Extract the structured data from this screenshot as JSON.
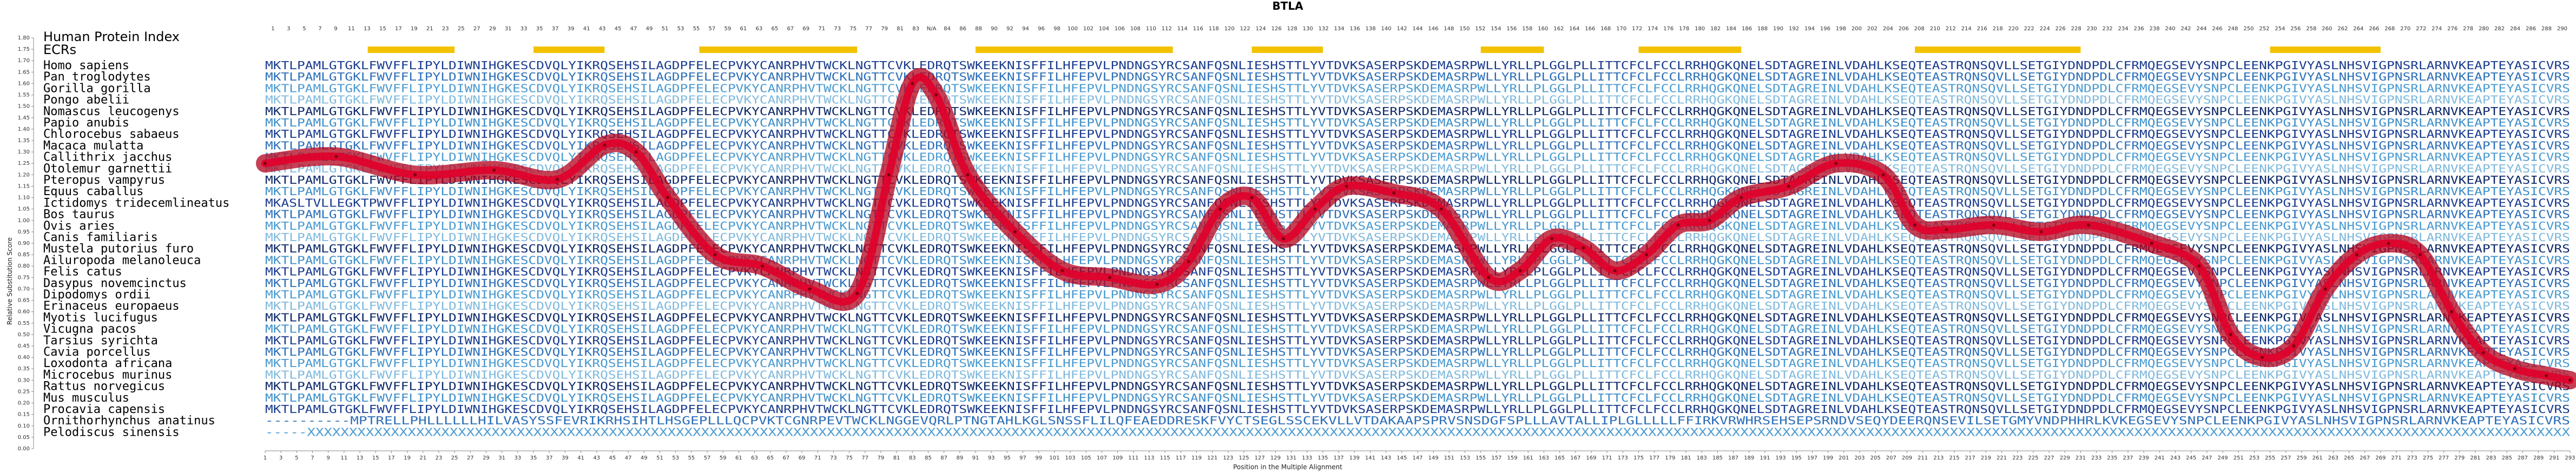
{
  "chart_data": {
    "type": "line",
    "title": "BTLA",
    "xlabel": "Position in the Multiple Alignment",
    "ylabel": "Relative Substitution Score",
    "ylim": [
      0.0,
      1.8
    ],
    "xlim": [
      1,
      293
    ],
    "yticks": [
      "0.00",
      "0.05",
      "0.10",
      "0.15",
      "0.20",
      "0.25",
      "0.30",
      "0.35",
      "0.40",
      "0.45",
      "0.50",
      "0.55",
      "0.60",
      "0.65",
      "0.70",
      "0.75",
      "0.80",
      "0.85",
      "0.90",
      "0.95",
      "1.00",
      "1.05",
      "1.10",
      "1.15",
      "1.20",
      "1.25",
      "1.30",
      "1.35",
      "1.40",
      "1.45",
      "1.50",
      "1.55",
      "1.60",
      "1.65",
      "1.70",
      "1.75",
      "1.80"
    ],
    "hpi_label": "Human Protein Index",
    "ecr_label": "ECRs",
    "ecr_regions": [
      [
        14,
        25
      ],
      [
        35,
        44
      ],
      [
        56,
        76
      ],
      [
        91,
        116
      ],
      [
        126,
        135
      ],
      [
        155,
        163
      ],
      [
        175,
        188
      ],
      [
        210,
        231
      ],
      [
        255,
        269
      ]
    ],
    "top_axis_labels": [
      "1",
      "3",
      "5",
      "7",
      "9",
      "11",
      "13",
      "15",
      "17",
      "19",
      "21",
      "23",
      "25",
      "27",
      "29",
      "31",
      "33",
      "35",
      "37",
      "39",
      "41",
      "43",
      "45",
      "47",
      "49",
      "51",
      "53",
      "55",
      "57",
      "59",
      "61",
      "63",
      "65",
      "67",
      "69",
      "71",
      "73",
      "75",
      "77",
      "79",
      "81",
      "83",
      "N/A",
      "84",
      "86",
      "88",
      "90",
      "92",
      "94",
      "96",
      "98",
      "100",
      "102",
      "104",
      "106",
      "108",
      "110",
      "112",
      "114",
      "116",
      "118",
      "120",
      "122",
      "124",
      "126",
      "128",
      "130",
      "132",
      "134",
      "136",
      "138",
      "140",
      "142",
      "144",
      "146",
      "148",
      "150",
      "152",
      "154",
      "156",
      "158",
      "160",
      "162",
      "164",
      "166",
      "168",
      "170",
      "172",
      "174",
      "176",
      "178",
      "180",
      "182",
      "184",
      "186",
      "188",
      "190",
      "192",
      "194",
      "196",
      "198",
      "200",
      "202",
      "204",
      "206",
      "208",
      "210",
      "212",
      "214",
      "216",
      "218",
      "220",
      "222",
      "224",
      "226",
      "228",
      "230",
      "232",
      "234",
      "236",
      "238",
      "240",
      "242",
      "244",
      "246",
      "248",
      "250",
      "252",
      "254",
      "256",
      "258",
      "260",
      "262",
      "264",
      "266",
      "268",
      "270",
      "272",
      "274",
      "276",
      "278",
      "280",
      "282",
      "284",
      "286",
      "288",
      "290"
    ],
    "species": [
      "Homo sapiens",
      "Pan troglodytes",
      "Gorilla gorilla",
      "Pongo abelii",
      "Nomascus leucogenys",
      "Papio anubis",
      "Chlorocebus sabaeus",
      "Macaca mulatta",
      "Callithrix jacchus",
      "Otolemur garnettii",
      "Pteropus vampyrus",
      "Equus caballus",
      "Ictidomys tridecemlineatus",
      "Bos taurus",
      "Ovis aries",
      "Canis familiaris",
      "Mustela putorius furo",
      "Ailuropoda melanoleuca",
      "Felis catus",
      "Dasypus novemcinctus",
      "Dipodomys ordii",
      "Erinaceus europaeus",
      "Myotis lucifugus",
      "Vicugna pacos",
      "Tarsius syrichta",
      "Cavia porcellus",
      "Loxodonta africana",
      "Microcebus murinus",
      "Rattus norvegicus",
      "Mus musculus",
      "Procavia capensis",
      "Ornithorhynchus anatinus",
      "Pelodiscus sinensis"
    ],
    "sequences": [
      "MKTLPAMLGTGKLFWVFFLIPYLDIWNIHGKESCDVQLYIKRQSEHSILAGDPFELECPVKYCANRPHVTWCKLNGTTCVKLEDRQTSWKEEKNISFFILHFEPVLPNDNGSYRCSANFQSNLIESHSTTLYVTDVKSASERPSKDEMASRPWLLYRLLPLGGLPLLITTCFCLFCCLRRHQGKQNELSDTAGREINLVDAHLKSEQTEASTRQNSQVLLSETGIYDNDPDLCFRMQEGSEVYSNPCLEENKPGIVYASLNHSVIGPNSRLARNVKEAPTEYASICVRS",
      "MKTLPAMLGTGKLFWVFFLIPYLDIWNIHGKESCDVQLYIKRQSEHSILAGDPFELECPVKYCANRPHVTWCKLNGTTCVKLEDRQTSWKEEKNISFFILHFEPVLPNDNGSYRCSANFQSNLIESHSTTLYVTDVKSASERPSKDEMASRPWLLYRLLPLGGLPLLITTCFCLFCCLRRHQGKQNELSDTAGREINLVDAHLKSEQTEASTRQNSQVLLSETGIYDNDPDLCFRMQEGSEVYSNPCLEENKPGIVYASLNHSVIGPNSRLARNVKEAPTEYASICVRS",
      "MKTLPAMLGTGKLFWVFFLIPYLDIWNIHGKESCDVQLYIKRQSEHSILAGDPFELECPVKYCANRPHVTWCKLNGTTCVKLEDRQTSWKEEKNISFFILHFEPVLPNDNGSYRCSANFQSNLIESHSTTLYVTDVKSASERPSKDEMASRPWLLYRLLPLGGLPLLITTCFCLFCCLRRHQGKQNELSDTAGREINLVDAHLKSEQTEASTRQNSQVLLSETGIYDNDPDLCFRMQEGSEVYSNPCLEENKPGIVYASLNHSVIGPNSRLARNVKEAPTEYASICVRS",
      "MKTLPAMLGTGKLFWVFFLIPYLDIWNIHGKESCDVQLYIKRQSEHSILAGDPFELECPVKYCANRPHVTWCKLNGTTCVKLEDRQTSWKEEKNISFFILHFEPVLPNDNGSYRCSANFQSNLIESHSTTLYVTDVKSASERPSKDEMASRPWLLYRLLPLGGLPLLITTCFCLFCCLRRHQGKQNELSDTAGREINLVDAHLKSEQTEASTRQNSQVLLSETGIYDNDPDLCFRMQEGSEVYSNPCLEENKPGIVYASLNHSVIGPNSRLARNVKEAPTEYASICVRS",
      "MKTLPAMLGTGKLFWVFFLIPYLDIWNIHGKESCDVQLYIKRQSEHSILAGDPFELECPVKYCANRPHVTWCKLNGTTCVKLEDRQTSWKEEKNISFFILHFEPVLPNDNGSYRCSANFQSNLIESHSTTLYVTDVKSASERPSKDEMASRPWLLYRLLPLGGLPLLITTCFCLFCCLRRHQGKQNELSDTAGREINLVDAHLKSEQTEASTRQNSQVLLSETGIYDNDPDLCFRMQEGSEVYSNPCLEENKPGIVYASLNHSVIGPNSRLARNVKEAPTEYASICVRS",
      "MKTLPAMLGTGKLFWVFFLIPYLDIWNIHGKESCDVQLYIKRQSEHSILAGDPFELECPVKYCANRPHVTWCKLNGTTCVKLEDRQTSWKEEKNISFFILHFEPVLPNDNGSYRCSANFQSNLIESHSTTLYVTDVKSASERPSKDEMASRPWLLYRLLPLGGLPLLITTCFCLFCCLRRHQGKQNELSDTAGREINLVDAHLKSEQTEASTRQNSQVLLSETGIYDNDPDLCFRMQEGSEVYSNPCLEENKPGIVYASLNHSVIGPNSRLARNVKEAPTEYASICVRS",
      "MKTLPAMLGTGKLFWVFFLIPYLDIWNIHGKESCDVQLYIKRQSEHSILAGDPFELECPVKYCANRPHVTWCKLNGTTCVKLEDRQTSWKEEKNISFFILHFEPVLPNDNGSYRCSANFQSNLIESHSTTLYVTDVKSASERPSKDEMASRPWLLYRLLPLGGLPLLITTCFCLFCCLRRHQGKQNELSDTAGREINLVDAHLKSEQTEASTRQNSQVLLSETGIYDNDPDLCFRMQEGSEVYSNPCLEENKPGIVYASLNHSVIGPNSRLARNVKEAPTEYASICVRS",
      "MKTLPAMLGTGKLFWVFFLIPYLDIWNIHGKESCDVQLYIKRQSEHSILAGDPFELECPVKYCANRPHVTWCKLNGTTCVKLEDRQTSWKEEKNISFFILHFEPVLPNDNGSYRCSANFQSNLIESHSTTLYVTDVKSASERPSKDEMASRPWLLYRLLPLGGLPLLITTCFCLFCCLRRHQGKQNELSDTAGREINLVDAHLKSEQTEASTRQNSQVLLSETGIYDNDPDLCFRMQEGSEVYSNPCLEENKPGIVYASLNHSVIGPNSRLARNVKEAPTEYASICVRS",
      "MKTLPAMLGTGKLFWVFFLIPYLDIWNIHGKESCDVQLYIKRQSEHSILAGDPFELECPVKYCANRPHVTWCKLNGTTCVKLEDRQTSWKEEKNISFFILHFEPVLPNDNGSYRCSANFQSNLIESHSTTLYVTDVKSASERPSKDEMASRPWLLYRLLPLGGLPLLITTCFCLFCCLRRHQGKQNELSDTAGREINLVDAHLKSEQTEASTRQNSQVLLSETGIYDNDPDLCFRMQEGSEVYSNPCLEENKPGIVYASLNHSVIGPNSRLARNVKEAPTEYASICVRS",
      "MKTLPAMLGTGKLFWVFFLIPYLDIWNIHGKESCDVQLYIKRQSEHSILAGDPFELECPVKYCANRPHVTWCKLNGTTCVKLEDRQTSWKEEKNISFFILHFEPVLPNDNGSYRCSANFQSNLIESHSTTLYVTDVKSASERPSKDEMASRPWLLYRLLPLGGLPLLITTCFCLFCCLRRHQGKQNELSDTAGREINLVDAHLKSEQTEASTRQNSQVLLSETGIYDNDPDLCFRMQEGSEVYSNPCLEENKPGIVYASLNHSVIGPNSRLARNVKEAPTEYASICVRS",
      "MKTLPAMLGTGKLFWVFFLIPYLDIWNIHGKESCDVQLYIKRQSEHSILAGDPFELECPVKYCANRPHVTWCKLNGTTCVKLEDRQTSWKEEKNISFFILHFEPVLPNDNGSYRCSANFQSNLIESHSTTLYVTDVKSASERPSKDEMASRPWLLYRLLPLGGLPLLITTCFCLFCCLRRHQGKQNELSDTAGREINLVDAHLKSEQTEASTRQNSQVLLSETGIYDNDPDLCFRMQEGSEVYSNPCLEENKPGIVYASLNHSVIGPNSRLARNVKEAPTEYASICVRS",
      "MKTLPAMLGTGKLFWVFFLIPYLDIWNIHGKESCDVQLYIKRQSEHSILAGDPFELECPVKYCANRPHVTWCKLNGTTCVKLEDRQTSWKEEKNISFFILHFEPVLPNDNGSYRCSANFQSNLIESHSTTLYVTDVKSASERPSKDEMASRPWLLYRLLPLGGLPLLITTCFCLFCCLRRHQGKQNELSDTAGREINLVDAHLKSEQTEASTRQNSQVLLSETGIYDNDPDLCFRMQEGSEVYSNPCLEENKPGIVYASLNHSVIGPNSRLARNVKEAPTEYASICVRS",
      "MKASLTVLLEGKTPWVFFLIPYLDIWNIHGKESCDVQLYIKRQSEHSILAGDPFELECPVKYCANRPHVTWCKLNGTTCVKLEDRQTSWKEEKNISFFILHFEPVLPNDNGSYRCSANFQSNLIESHSTTLYVTDVKSASERPSKDEMASRPWLLYRLLPLGGLPLLITTCFCLFCCLRRHQGKQNELSDTAGREINLVDAHLKSEQTEASTRQNSQVLLSETGIYDNDPDLCFRMQEGSEVYSNPCLEENKPGIVYASLNHSVIGPNSRLARNVKEAPTEYASICVRS",
      "MKTLPAMLGTGKLFWVFFLIPYLDIWNIHGKESCDVQLYIKRQSEHSILAGDPFELECPVKYCANRPHVTWCKLNGTTCVKLEDRQTSWKEEKNISFFILHFEPVLPNDNGSYRCSANFQSNLIESHSTTLYVTDVKSASERPSKDEMASRPWLLYRLLPLGGLPLLITTCFCLFCCLRRHQGKQNELSDTAGREINLVDAHLKSEQTEASTRQNSQVLLSETGIYDNDPDLCFRMQEGSEVYSNPCLEENKPGIVYASLNHSVIGPNSRLARNVKEAPTEYASICVRS",
      "MKTLPAMLGTGKLFWVFFLIPYLDIWNIHGKESCDVQLYIKRQSEHSILAGDPFELECPVKYCANRPHVTWCKLNGTTCVKLEDRQTSWKEEKNISFFILHFEPVLPNDNGSYRCSANFQSNLIESHSTTLYVTDVKSASERPSKDEMASRPWLLYRLLPLGGLPLLITTCFCLFCCLRRHQGKQNELSDTAGREINLVDAHLKSEQTEASTRQNSQVLLSETGIYDNDPDLCFRMQEGSEVYSNPCLEENKPGIVYASLNHSVIGPNSRLARNVKEAPTEYASICVRS",
      "MKTLPAMLGTGKLFWVFFLIPYLDIWNIHGKESCDVQLYIKRQSEHSILAGDPFELECPVKYCANRPHVTWCKLNGTTCVKLEDRQTSWKEEKNISFFILHFEPVLPNDNGSYRCSANFQSNLIESHSTTLYVTDVKSASERPSKDEMASRPWLLYRLLPLGGLPLLITTCFCLFCCLRRHQGKQNELSDTAGREINLVDAHLKSEQTEASTRQNSQVLLSETGIYDNDPDLCFRMQEGSEVYSNPCLEENKPGIVYASLNHSVIGPNSRLARNVKEAPTEYASICVRS",
      "MKTLPAMLGTGKLFWVFFLIPYLDIWNIHGKESCDVQLYIKRQSEHSILAGDPFELECPVKYCANRPHVTWCKLNGTTCVKLEDRQTSWKEEKNISFFILHFEPVLPNDNGSYRCSANFQSNLIESHSTTLYVTDVKSASERPSKDEMASRPWLLYRLLPLGGLPLLITTCFCLFCCLRRHQGKQNELSDTAGREINLVDAHLKSEQTEASTRQNSQVLLSETGIYDNDPDLCFRMQEGSEVYSNPCLEENKPGIVYASLNHSVIGPNSRLARNVKEAPTEYASICVRS",
      "MKTLPAMLGTGKLFWVFFLIPYLDIWNIHGKESCDVQLYIKRQSEHSILAGDPFELECPVKYCANRPHVTWCKLNGTTCVKLEDRQTSWKEEKNISFFILHFEPVLPNDNGSYRCSANFQSNLIESHSTTLYVTDVKSASERPSKDEMASRPWLLYRLLPLGGLPLLITTCFCLFCCLRRHQGKQNELSDTAGREINLVDAHLKSEQTEASTRQNSQVLLSETGIYDNDPDLCFRMQEGSEVYSNPCLEENKPGIVYASLNHSVIGPNSRLARNVKEAPTEYASICVRS",
      "MKTLPAMLGTGKLFWVFFLIPYLDIWNIHGKESCDVQLYIKRQSEHSILAGDPFELECPVKYCANRPHVTWCKLNGTTCVKLEDRQTSWKEEKNISFFILHFEPVLPNDNGSYRCSANFQSNLIESHSTTLYVTDVKSASERPSKDEMASRPWLLYRLLPLGGLPLLITTCFCLFCCLRRHQGKQNELSDTAGREINLVDAHLKSEQTEASTRQNSQVLLSETGIYDNDPDLCFRMQEGSEVYSNPCLEENKPGIVYASLNHSVIGPNSRLARNVKEAPTEYASICVRS",
      "MKTLPAMLGTGKLFWVFFLIPYLDIWNIHGKESCDVQLYIKRQSEHSILAGDPFELECPVKYCANRPHVTWCKLNGTTCVKLEDRQTSWKEEKNISFFILHFEPVLPNDNGSYRCSANFQSNLIESHSTTLYVTDVKSASERPSKDEMASRPWLLYRLLPLGGLPLLITTCFCLFCCLRRHQGKQNELSDTAGREINLVDAHLKSEQTEASTRQNSQVLLSETGIYDNDPDLCFRMQEGSEVYSNPCLEENKPGIVYASLNHSVIGPNSRLARNVKEAPTEYASICVRS",
      "MKTLPAMLGTGKLFWVFFLIPYLDIWNIHGKESCDVQLYIKRQSEHSILAGDPFELECPVKYCANRPHVTWCKLNGTTCVKLEDRQTSWKEEKNISFFILHFEPVLPNDNGSYRCSANFQSNLIESHSTTLYVTDVKSASERPSKDEMASRPWLLYRLLPLGGLPLLITTCFCLFCCLRRHQGKQNELSDTAGREINLVDAHLKSEQTEASTRQNSQVLLSETGIYDNDPDLCFRMQEGSEVYSNPCLEENKPGIVYASLNHSVIGPNSRLARNVKEAPTEYASICVRS",
      "MKTLPAMLGTGKLFWVFFLIPYLDIWNIHGKESCDVQLYIKRQSEHSILAGDPFELECPVKYCANRPHVTWCKLNGTTCVKLEDRQTSWKEEKNISFFILHFEPVLPNDNGSYRCSANFQSNLIESHSTTLYVTDVKSASERPSKDEMASRPWLLYRLLPLGGLPLLITTCFCLFCCLRRHQGKQNELSDTAGREINLVDAHLKSEQTEASTRQNSQVLLSETGIYDNDPDLCFRMQEGSEVYSNPCLEENKPGIVYASLNHSVIGPNSRLARNVKEAPTEYASICVRS",
      "MKTLPAMLGTGKLFWVFFLIPYLDIWNIHGKESCDVQLYIKRQSEHSILAGDPFELECPVKYCANRPHVTWCKLNGTTCVKLEDRQTSWKEEKNISFFILHFEPVLPNDNGSYRCSANFQSNLIESHSTTLYVTDVKSASERPSKDEMASRPWLLYRLLPLGGLPLLITTCFCLFCCLRRHQGKQNELSDTAGREINLVDAHLKSEQTEASTRQNSQVLLSETGIYDNDPDLCFRMQEGSEVYSNPCLEENKPGIVYASLNHSVIGPNSRLARNVKEAPTEYASICVRS",
      "MKTLPAMLGTGKLFWVFFLIPYLDIWNIHGKESCDVQLYIKRQSEHSILAGDPFELECPVKYCANRPHVTWCKLNGTTCVKLEDRQTSWKEEKNISFFILHFEPVLPNDNGSYRCSANFQSNLIESHSTTLYVTDVKSASERPSKDEMASRPWLLYRLLPLGGLPLLITTCFCLFCCLRRHQGKQNELSDTAGREINLVDAHLKSEQTEASTRQNSQVLLSETGIYDNDPDLCFRMQEGSEVYSNPCLEENKPGIVYASLNHSVIGPNSRLARNVKEAPTEYASICVRS",
      "MKTLPAMLGTGKLFWVFFLIPYLDIWNIHGKESCDVQLYIKRQSEHSILAGDPFELECPVKYCANRPHVTWCKLNGTTCVKLEDRQTSWKEEKNISFFILHFEPVLPNDNGSYRCSANFQSNLIESHSTTLYVTDVKSASERPSKDEMASRPWLLYRLLPLGGLPLLITTCFCLFCCLRRHQGKQNELSDTAGREINLVDAHLKSEQTEASTRQNSQVLLSETGIYDNDPDLCFRMQEGSEVYSNPCLEENKPGIVYASLNHSVIGPNSRLARNVKEAPTEYASICVRS",
      "MKTLPAMLGTGKLFWVFFLIPYLDIWNIHGKESCDVQLYIKRQSEHSILAGDPFELECPVKYCANRPHVTWCKLNGTTCVKLEDRQTSWKEEKNISFFILHFEPVLPNDNGSYRCSANFQSNLIESHSTTLYVTDVKSASERPSKDEMASRPWLLYRLLPLGGLPLLITTCFCLFCCLRRHQGKQNELSDTAGREINLVDAHLKSEQTEASTRQNSQVLLSETGIYDNDPDLCFRMQEGSEVYSNPCLEENKPGIVYASLNHSVIGPNSRLARNVKEAPTEYASICVRS",
      "MKTLPAMLGTGKLFWVFFLIPYLDIWNIHGKESCDVQLYIKRQSEHSILAGDPFELECPVKYCANRPHVTWCKLNGTTCVKLEDRQTSWKEEKNISFFILHFEPVLPNDNGSYRCSANFQSNLIESHSTTLYVTDVKSASERPSKDEMASRPWLLYRLLPLGGLPLLITTCFCLFCCLRRHQGKQNELSDTAGREINLVDAHLKSEQTEASTRQNSQVLLSETGIYDNDPDLCFRMQEGSEVYSNPCLEENKPGIVYASLNHSVIGPNSRLARNVKEAPTEYASICVRS",
      "MKTLPAMLGTGKLFWVFFLIPYLDIWNIHGKESCDVQLYIKRQSEHSILAGDPFELECPVKYCANRPHVTWCKLNGTTCVKLEDRQTSWKEEKNISFFILHFEPVLPNDNGSYRCSANFQSNLIESHSTTLYVTDVKSASERPSKDEMASRPWLLYRLLPLGGLPLLITTCFCLFCCLRRHQGKQNELSDTAGREINLVDAHLKSEQTEASTRQNSQVLLSETGIYDNDPDLCFRMQEGSEVYSNPCLEENKPGIVYASLNHSVIGPNSRLARNVKEAPTEYASICVRS",
      "MKTLPAMLGTGKLFWVFFLIPYLDIWNIHGKESCDVQLYIKRQSEHSILAGDPFELECPVKYCANRPHVTWCKLNGTTCVKLEDRQTSWKEEKNISFFILHFEPVLPNDNGSYRCSANFQSNLIESHSTTLYVTDVKSASERPSKDEMASRPWLLYRLLPLGGLPLLITTCFCLFCCLRRHQGKQNELSDTAGREINLVDAHLKSEQTEASTRQNSQVLLSETGIYDNDPDLCFRMQEGSEVYSNPCLEENKPGIVYASLNHSVIGPNSRLARNVKEAPTEYASICVRS",
      "MKTLPAMLGTGKLFWVFFLIPYLDIWNIHGKESCDVQLYIKRQSEHSILAGDPFELECPVKYCANRPHVTWCKLNGTTCVKLEDRQTSWKEEKNISFFILHFEPVLPNDNGSYRCSANFQSNLIESHSTTLYVTDVKSASERPSKDEMASRPWLLYRLLPLGGLPLLITTCFCLFCCLRRHQGKQNELSDTAGREINLVDAHLKSEQTEASTRQNSQVLLSETGIYDNDPDLCFRMQEGSEVYSNPCLEENKPGIVYASLNHSVIGPNSRLARNVKEAPTEYASICVRS",
      "MKTLPAMLGTGKLFWVFFLIPYLDIWNIHGKESCDVQLYIKRQSEHSILAGDPFELECPVKYCANRPHVTWCKLNGTTCVKLEDRQTSWKEEKNISFFILHFEPVLPNDNGSYRCSANFQSNLIESHSTTLYVTDVKSASERPSKDEMASRPWLLYRLLPLGGLPLLITTCFCLFCCLRRHQGKQNELSDTAGREINLVDAHLKSEQTEASTRQNSQVLLSETGIYDNDPDLCFRMQEGSEVYSNPCLEENKPGIVYASLNHSVIGPNSRLARNVKEAPTEYASICVRS",
      "----------MPTRELLPHLLLLLLHILVASYSSFEVRIKRHSIHTLHSGEPLLLQCPVKTCGNRPEVTWCKLNGGEVQRLPTNGTAHLKGLSNSSFLILQFEAEDDRESKFVYCTSEGLSSCEKVLLVTDAKAAPSPRVSNSDGFSPLLLAVTALLIPLGLLLLLFFIRKVRWHRSEHSEPSRNDVSEQYDEERQNSEVILSETGMYVNDPHHRLKVKEGSEVYSNPCLEENKPGIVYASLNHSVIGPNSRLARNVKEAPTEYASICVRS",
      "-----XXXXXXXXXXXXXXXXXXXXXXXXXXXXXXXXXXXXXXXXXXXXXXXXXXXXXXXXXXXXXXXXXXXXXXXXXXXXXXXXXXXXXXXXXXXXXXXXXXXXXXXXXXXXXXXXXXXXXXXXXXXXXXXXXXXXXXXXXXXXXXXXXXXXXXXXXXXXXXXXXXXXXXXXXXXXXXXXXXXXXXXXXXXXXXXXXXXXXXXXXXXXXXXXXXXXXXXXXXXXXXXXXXXXXXXXXXXXXXXXXXXXXXXXXXXXXXXXXXXXXXXXXXXXXX"
    ],
    "series": [
      {
        "x": [
          1,
          10,
          20,
          30,
          38,
          44,
          48,
          52,
          58,
          64,
          70,
          76,
          80,
          83,
          86,
          90,
          96,
          102,
          108,
          114,
          118,
          122,
          126,
          130,
          134,
          138,
          144,
          150,
          156,
          160,
          164,
          168,
          172,
          176,
          180,
          184,
          188,
          194,
          200,
          206,
          210,
          214,
          220,
          226,
          232,
          240,
          246,
          250,
          254,
          258,
          262,
          266,
          270,
          274,
          278,
          282,
          286,
          290,
          293
        ],
        "y": [
          1.25,
          1.28,
          1.2,
          1.22,
          1.18,
          1.33,
          1.3,
          1.1,
          0.85,
          0.8,
          0.7,
          0.68,
          1.2,
          1.6,
          1.55,
          1.2,
          0.95,
          0.78,
          0.75,
          0.72,
          0.82,
          1.05,
          1.1,
          0.92,
          1.05,
          1.15,
          1.12,
          1.05,
          0.75,
          0.78,
          0.92,
          0.88,
          0.78,
          0.85,
          0.98,
          1.0,
          1.1,
          1.15,
          1.25,
          1.2,
          0.98,
          0.96,
          0.98,
          0.95,
          0.98,
          0.9,
          0.8,
          0.5,
          0.4,
          0.45,
          0.7,
          0.85,
          0.9,
          0.85,
          0.6,
          0.42,
          0.35,
          0.32,
          0.3
        ]
      }
    ]
  }
}
